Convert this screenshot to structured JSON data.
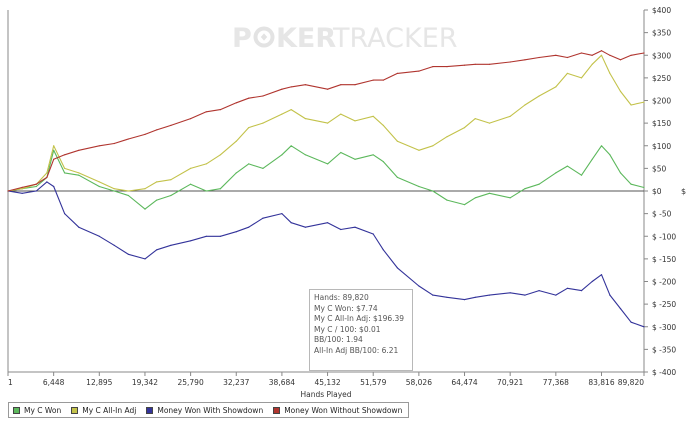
{
  "watermark": {
    "left": "P",
    "middle": "KER",
    "right": "TRACKER"
  },
  "legend": [
    {
      "name": "My C Won",
      "color": "#5cb85c"
    },
    {
      "name": "My C All-In Adj",
      "color": "#c3c24a"
    },
    {
      "name": "Money Won With Showdown",
      "color": "#33339a"
    },
    {
      "name": "Money Won Without Showdown",
      "color": "#b0352f"
    }
  ],
  "tooltip": [
    "Hands: 89,820",
    "My C Won: $7.74",
    "My C All-In Adj: $196.39",
    "My C / 100: $0.01",
    "BB/100: 1.94",
    "All-In Adj BB/100: 6.21"
  ],
  "chart_data": {
    "type": "line",
    "xlabel": "Hands Played",
    "ylabel": "$",
    "xlim": [
      1,
      89820
    ],
    "ylim": [
      -400,
      400
    ],
    "x_ticks": [
      "1",
      "6,448",
      "12,895",
      "19,342",
      "25,790",
      "32,237",
      "38,684",
      "45,132",
      "51,579",
      "58,026",
      "64,474",
      "70,921",
      "77,368",
      "83,816",
      "89,820"
    ],
    "x_tick_values": [
      1,
      6448,
      12895,
      19342,
      25790,
      32237,
      38684,
      45132,
      51579,
      58026,
      64474,
      70921,
      77368,
      83816,
      89820
    ],
    "y_ticks": [
      "$400",
      "$350",
      "$300",
      "$250",
      "$200",
      "$150",
      "$100",
      "$50",
      "$0",
      "$ -50",
      "$ -100",
      "$ -150",
      "$ -200",
      "$ -250",
      "$ -300",
      "$ -350",
      "$ -400"
    ],
    "y_tick_values": [
      400,
      350,
      300,
      250,
      200,
      150,
      100,
      50,
      0,
      -50,
      -100,
      -150,
      -200,
      -250,
      -300,
      -350,
      -400
    ],
    "grid": false,
    "legend_position": "bottom-left",
    "x": [
      1,
      2000,
      4000,
      5500,
      6448,
      8000,
      10000,
      12895,
      15000,
      17000,
      19342,
      21000,
      23000,
      25790,
      28000,
      30000,
      32237,
      34000,
      36000,
      38684,
      40000,
      42000,
      45132,
      47000,
      49000,
      51579,
      53000,
      55000,
      58026,
      60000,
      62000,
      64474,
      66000,
      68000,
      70921,
      73000,
      75000,
      77368,
      79000,
      81000,
      82500,
      83816,
      85000,
      86500,
      88000,
      89820
    ],
    "series": [
      {
        "name": "My C Won",
        "color": "#5cb85c",
        "values": [
          0,
          5,
          10,
          30,
          90,
          40,
          35,
          10,
          0,
          -10,
          -40,
          -20,
          -10,
          15,
          0,
          5,
          40,
          60,
          50,
          80,
          100,
          80,
          60,
          85,
          70,
          80,
          65,
          30,
          10,
          0,
          -20,
          -30,
          -15,
          -5,
          -15,
          5,
          15,
          40,
          55,
          35,
          70,
          100,
          80,
          40,
          15,
          7.74
        ]
      },
      {
        "name": "My C All-In Adj",
        "color": "#c3c24a",
        "values": [
          0,
          5,
          15,
          40,
          100,
          50,
          40,
          20,
          5,
          0,
          5,
          20,
          25,
          50,
          60,
          80,
          110,
          140,
          150,
          170,
          180,
          160,
          150,
          170,
          155,
          165,
          145,
          110,
          90,
          100,
          120,
          140,
          160,
          150,
          165,
          190,
          210,
          230,
          260,
          250,
          280,
          300,
          260,
          220,
          190,
          196.39
        ]
      },
      {
        "name": "Money Won With Showdown",
        "color": "#33339a",
        "values": [
          0,
          -5,
          0,
          20,
          10,
          -50,
          -80,
          -100,
          -120,
          -140,
          -150,
          -130,
          -120,
          -110,
          -100,
          -100,
          -90,
          -80,
          -60,
          -50,
          -70,
          -80,
          -70,
          -85,
          -80,
          -95,
          -130,
          -170,
          -210,
          -230,
          -235,
          -240,
          -235,
          -230,
          -225,
          -230,
          -220,
          -230,
          -215,
          -220,
          -200,
          -185,
          -230,
          -260,
          -290,
          -300
        ]
      },
      {
        "name": "Money Won Without Showdown",
        "color": "#b0352f",
        "values": [
          0,
          8,
          15,
          30,
          70,
          80,
          90,
          100,
          105,
          115,
          125,
          135,
          145,
          160,
          175,
          180,
          195,
          205,
          210,
          225,
          230,
          235,
          225,
          235,
          235,
          245,
          245,
          260,
          265,
          275,
          275,
          278,
          280,
          280,
          285,
          290,
          295,
          300,
          295,
          305,
          300,
          310,
          300,
          290,
          300,
          305
        ]
      }
    ]
  }
}
